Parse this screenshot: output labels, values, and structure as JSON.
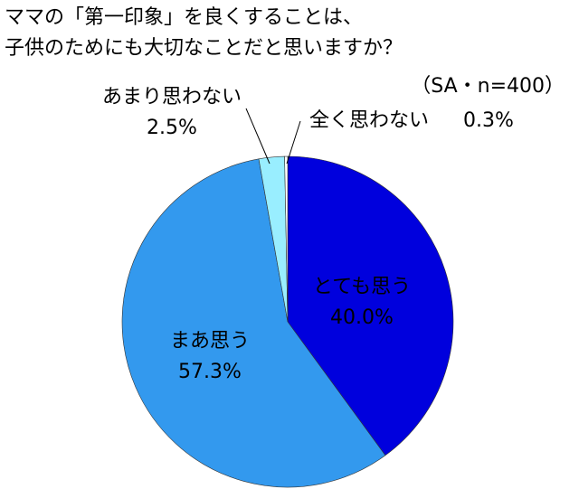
{
  "chart_data": {
    "type": "pie",
    "title": [
      "ママの「第一印象」を良くすることは、",
      "子供のためにも大切なことだと思いますか？"
    ],
    "subtitle": "（SA・n=400）",
    "categories": [
      "とても思う",
      "まあ思う",
      "あまり思わない",
      "全く思わない"
    ],
    "values": [
      40.0,
      57.3,
      2.5,
      0.3
    ],
    "value_labels": [
      "40.0%",
      "57.3%",
      "2.5%",
      "0.3%"
    ],
    "colors": [
      "#0000dd",
      "#3399ee",
      "#99eeff",
      "#ffffff"
    ]
  }
}
